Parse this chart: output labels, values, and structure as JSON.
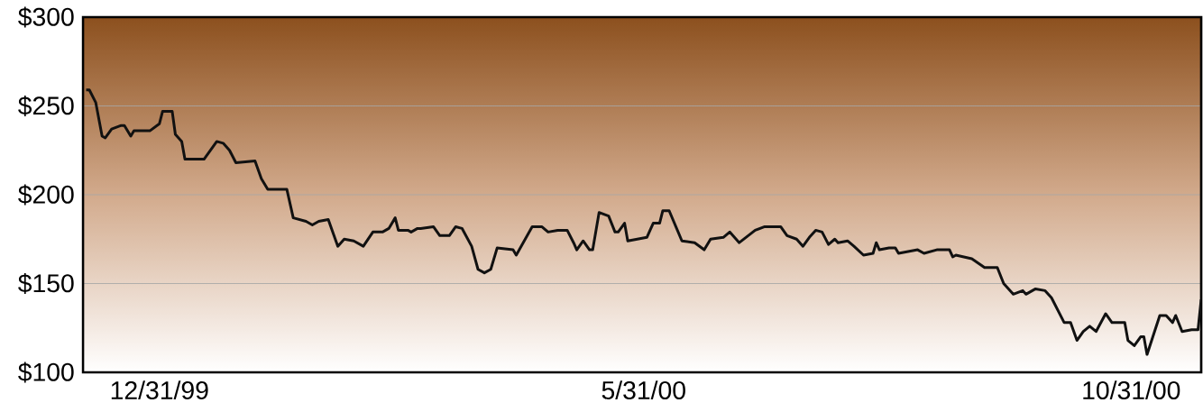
{
  "chart_data": {
    "type": "line",
    "color": "#111111",
    "grid": "y",
    "xlim": [
      "1999-12-07",
      "2000-11-22"
    ],
    "ylim": [
      100,
      300
    ],
    "xticks": [
      {
        "value": "1999-12-31",
        "label": "12/31/99"
      },
      {
        "value": "2000-05-31",
        "label": "5/31/00"
      },
      {
        "value": "2000-10-31",
        "label": "10/31/00"
      }
    ],
    "yticks": [
      {
        "value": 100,
        "label": "$100"
      },
      {
        "value": 150,
        "label": "$150"
      },
      {
        "value": 200,
        "label": "$200"
      },
      {
        "value": 250,
        "label": "$250"
      },
      {
        "value": 300,
        "label": "$300"
      }
    ],
    "x": [
      "1999-12-08",
      "1999-12-09",
      "1999-12-11",
      "1999-12-13",
      "1999-12-14",
      "1999-12-16",
      "1999-12-19",
      "1999-12-20",
      "1999-12-22",
      "1999-12-23",
      "1999-12-28",
      "1999-12-31",
      "2000-01-01",
      "2000-01-04",
      "2000-01-05",
      "2000-01-07",
      "2000-01-08",
      "2000-01-14",
      "2000-01-18",
      "2000-01-20",
      "2000-01-22",
      "2000-01-24",
      "2000-01-30",
      "2000-02-01",
      "2000-02-03",
      "2000-02-09",
      "2000-02-11",
      "2000-02-15",
      "2000-02-17",
      "2000-02-19",
      "2000-02-22",
      "2000-02-25",
      "2000-02-27",
      "2000-03-01",
      "2000-03-04",
      "2000-03-07",
      "2000-03-10",
      "2000-03-12",
      "2000-03-14",
      "2000-03-15",
      "2000-03-18",
      "2000-03-19",
      "2000-03-21",
      "2000-03-22",
      "2000-03-26",
      "2000-03-28",
      "2000-03-31",
      "2000-04-02",
      "2000-04-04",
      "2000-04-07",
      "2000-04-09",
      "2000-04-11",
      "2000-04-13",
      "2000-04-15",
      "2000-04-20",
      "2000-04-21",
      "2000-04-26",
      "2000-04-29",
      "2000-05-01",
      "2000-05-04",
      "2000-05-07",
      "2000-05-09",
      "2000-05-10",
      "2000-05-12",
      "2000-05-14",
      "2000-05-15",
      "2000-05-17",
      "2000-05-20",
      "2000-05-22",
      "2000-05-23",
      "2000-05-25",
      "2000-05-26",
      "2000-05-29",
      "2000-06-01",
      "2000-06-03",
      "2000-06-05",
      "2000-06-06",
      "2000-06-08",
      "2000-06-12",
      "2000-06-16",
      "2000-06-19",
      "2000-06-21",
      "2000-06-25",
      "2000-06-27",
      "2000-06-30",
      "2000-07-05",
      "2000-07-08",
      "2000-07-13",
      "2000-07-15",
      "2000-07-18",
      "2000-07-20",
      "2000-07-22",
      "2000-07-24",
      "2000-07-26",
      "2000-07-28",
      "2000-07-30",
      "2000-07-31",
      "2000-08-03",
      "2000-08-05",
      "2000-08-08",
      "2000-08-11",
      "2000-08-12",
      "2000-08-13",
      "2000-08-16",
      "2000-08-18",
      "2000-08-19",
      "2000-08-22",
      "2000-08-25",
      "2000-08-27",
      "2000-08-31",
      "2000-09-04",
      "2000-09-05",
      "2000-09-06",
      "2000-09-11",
      "2000-09-15",
      "2000-09-19",
      "2000-09-21",
      "2000-09-24",
      "2000-09-27",
      "2000-09-28",
      "2000-10-01",
      "2000-10-04",
      "2000-10-06",
      "2000-10-10",
      "2000-10-12",
      "2000-10-14",
      "2000-10-16",
      "2000-10-18",
      "2000-10-20",
      "2000-10-23",
      "2000-10-25",
      "2000-10-29",
      "2000-10-30",
      "2000-11-01",
      "2000-11-03",
      "2000-11-04",
      "2000-11-05",
      "2000-11-09",
      "2000-11-11",
      "2000-11-13",
      "2000-11-14",
      "2000-11-16",
      "2000-11-19",
      "2000-11-21",
      "2000-11-22"
    ],
    "values": [
      259,
      259,
      252,
      233,
      232,
      237,
      239,
      239,
      233,
      236,
      236,
      240,
      247,
      247,
      234,
      230,
      220,
      220,
      230,
      229,
      225,
      218,
      219,
      209,
      203,
      203,
      187,
      185,
      183,
      185,
      186,
      171,
      175,
      174,
      171,
      179,
      179,
      181,
      187,
      180,
      180,
      179,
      181,
      181,
      182,
      177,
      177,
      182,
      181,
      171,
      158,
      156,
      158,
      170,
      169,
      166,
      182,
      182,
      179,
      180,
      180,
      173,
      169,
      174,
      169,
      169,
      190,
      188,
      179,
      179,
      184,
      174,
      175,
      176,
      184,
      184,
      191,
      191,
      174,
      173,
      169,
      175,
      176,
      179,
      173,
      180,
      182,
      182,
      177,
      175,
      171,
      176,
      180,
      179,
      172,
      175,
      173,
      174,
      171,
      166,
      167,
      173,
      169,
      170,
      170,
      167,
      168,
      169,
      167,
      169,
      169,
      165,
      166,
      164,
      159,
      159,
      150,
      144,
      146,
      144,
      147,
      146,
      142,
      128,
      128,
      118,
      123,
      126,
      123,
      133,
      128,
      128,
      118,
      115,
      120,
      120,
      110,
      132,
      132,
      128,
      132,
      123,
      124,
      124,
      141
    ]
  }
}
